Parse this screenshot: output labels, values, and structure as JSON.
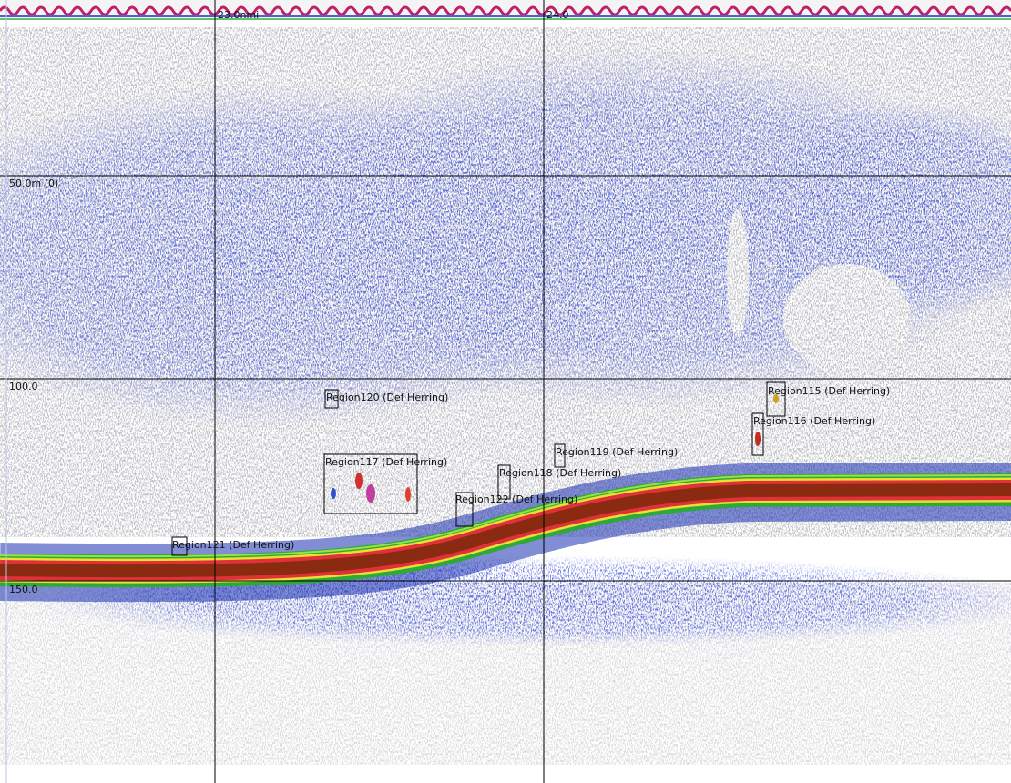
{
  "grid": {
    "x_labels": [
      "23.0nmi",
      "24.0"
    ],
    "y_labels": [
      "50.0m (0)",
      "100.0",
      "150.0"
    ]
  },
  "regions": [
    {
      "label": "Region120 (Def Herring)"
    },
    {
      "label": "Region117 (Def Herring)"
    },
    {
      "label": "Region121 (Def Herring)"
    },
    {
      "label": "Region122 (Def Herring)"
    },
    {
      "label": "Region118 (Def Herring)"
    },
    {
      "label": "Region119 (Def Herring)"
    },
    {
      "label": "Region115 (Def Herring)"
    },
    {
      "label": "Region116 (Def Herring)"
    }
  ]
}
